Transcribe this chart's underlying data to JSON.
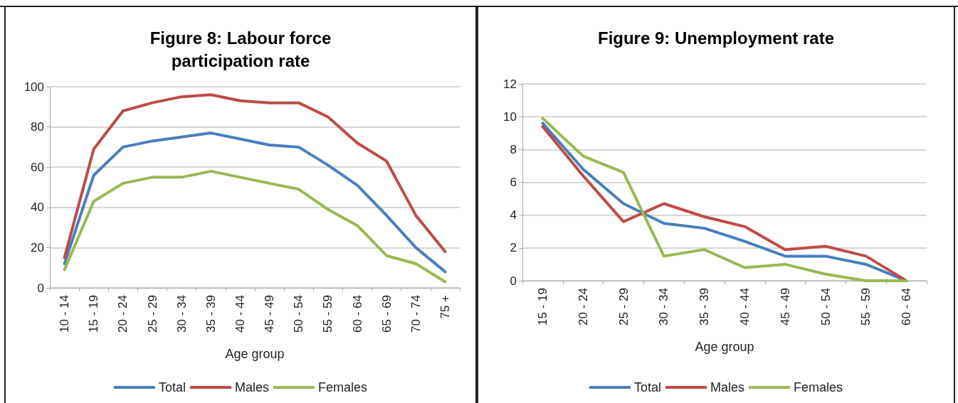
{
  "chart_data": [
    {
      "type": "line",
      "title": "Figure 8: Labour force\nparticipation rate",
      "xlabel": "Age group",
      "categories": [
        "10 - 14",
        "15 - 19",
        "20 - 24",
        "25 - 29",
        "30 - 34",
        "35 - 39",
        "40 - 44",
        "45 - 49",
        "50 - 54",
        "55 - 59",
        "60 - 64",
        "65 - 69",
        "70 - 74",
        "75 +"
      ],
      "series": [
        {
          "name": "Total",
          "color": "#4a7ebb",
          "values": [
            12,
            56,
            70,
            73,
            75,
            77,
            74,
            71,
            70,
            61,
            51,
            36,
            20,
            8
          ]
        },
        {
          "name": "Males",
          "color": "#be4b48",
          "values": [
            15,
            69,
            88,
            92,
            95,
            96,
            93,
            92,
            92,
            85,
            72,
            63,
            36,
            18
          ]
        },
        {
          "name": "Females",
          "color": "#98b954",
          "values": [
            9,
            43,
            52,
            55,
            55,
            58,
            55,
            52,
            49,
            39,
            31,
            16,
            12,
            3
          ]
        }
      ],
      "ylim": [
        0,
        100
      ],
      "yticks": [
        0,
        20,
        40,
        60,
        80,
        100
      ],
      "grid": "y",
      "legend": "bottom",
      "marker": "none",
      "line_style": "solid"
    },
    {
      "type": "line",
      "title": "Figure 9: Unemployment rate",
      "xlabel": "Age group",
      "categories": [
        "15 - 19",
        "20 - 24",
        "25 - 29",
        "30 - 34",
        "35 - 39",
        "40 - 44",
        "45 - 49",
        "50 - 54",
        "55 - 59",
        "60 - 64"
      ],
      "series": [
        {
          "name": "Total",
          "color": "#4a7ebb",
          "values": [
            9.6,
            6.8,
            4.7,
            3.5,
            3.2,
            2.4,
            1.5,
            1.5,
            1.0,
            0
          ]
        },
        {
          "name": "Males",
          "color": "#be4b48",
          "values": [
            9.4,
            6.4,
            3.6,
            4.7,
            3.9,
            3.3,
            1.9,
            2.1,
            1.5,
            0
          ]
        },
        {
          "name": "Females",
          "color": "#98b954",
          "values": [
            9.9,
            7.6,
            6.6,
            1.5,
            1.9,
            0.8,
            1.0,
            0.4,
            0,
            0
          ]
        }
      ],
      "ylim": [
        0,
        12
      ],
      "yticks": [
        0,
        2,
        4,
        6,
        8,
        10,
        12
      ],
      "grid": "y",
      "legend": "bottom",
      "marker": "none",
      "line_style": "solid"
    }
  ]
}
